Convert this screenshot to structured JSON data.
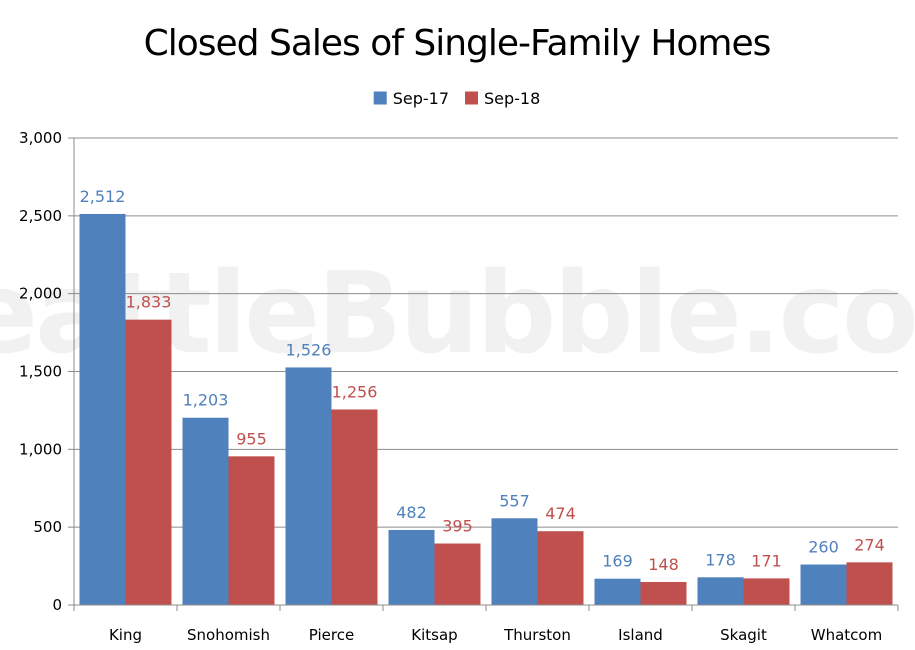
{
  "chart_data": {
    "type": "bar",
    "title": "Closed Sales of Single-Family Homes",
    "watermark": "SeattleBubble.com",
    "categories": [
      "King",
      "Snohomish",
      "Pierce",
      "Kitsap",
      "Thurston",
      "Island",
      "Skagit",
      "Whatcom"
    ],
    "series": [
      {
        "name": "Sep-17",
        "color": "#4f81bd",
        "label_color": "#4f81bd",
        "values": [
          2512,
          1203,
          1526,
          482,
          557,
          169,
          178,
          260
        ],
        "labels": [
          "2,512",
          "1,203",
          "1,526",
          "482",
          "557",
          "169",
          "178",
          "260"
        ]
      },
      {
        "name": "Sep-18",
        "color": "#c0504d",
        "label_color": "#c0504d",
        "values": [
          1833,
          955,
          1256,
          395,
          474,
          148,
          171,
          274
        ],
        "labels": [
          "1,833",
          "955",
          "1,256",
          "395",
          "474",
          "148",
          "171",
          "274"
        ]
      }
    ],
    "ylim": [
      0,
      3000
    ],
    "yticks": [
      0,
      500,
      1000,
      1500,
      2000,
      2500,
      3000
    ],
    "ytick_labels": [
      "0",
      "500",
      "1,000",
      "1,500",
      "2,000",
      "2,500",
      "3,000"
    ],
    "xlabel": "",
    "ylabel": "",
    "grid": true,
    "legend_position": "top-center",
    "gridline_color": "#8c8c8c",
    "axis_color": "#8c8c8c"
  }
}
